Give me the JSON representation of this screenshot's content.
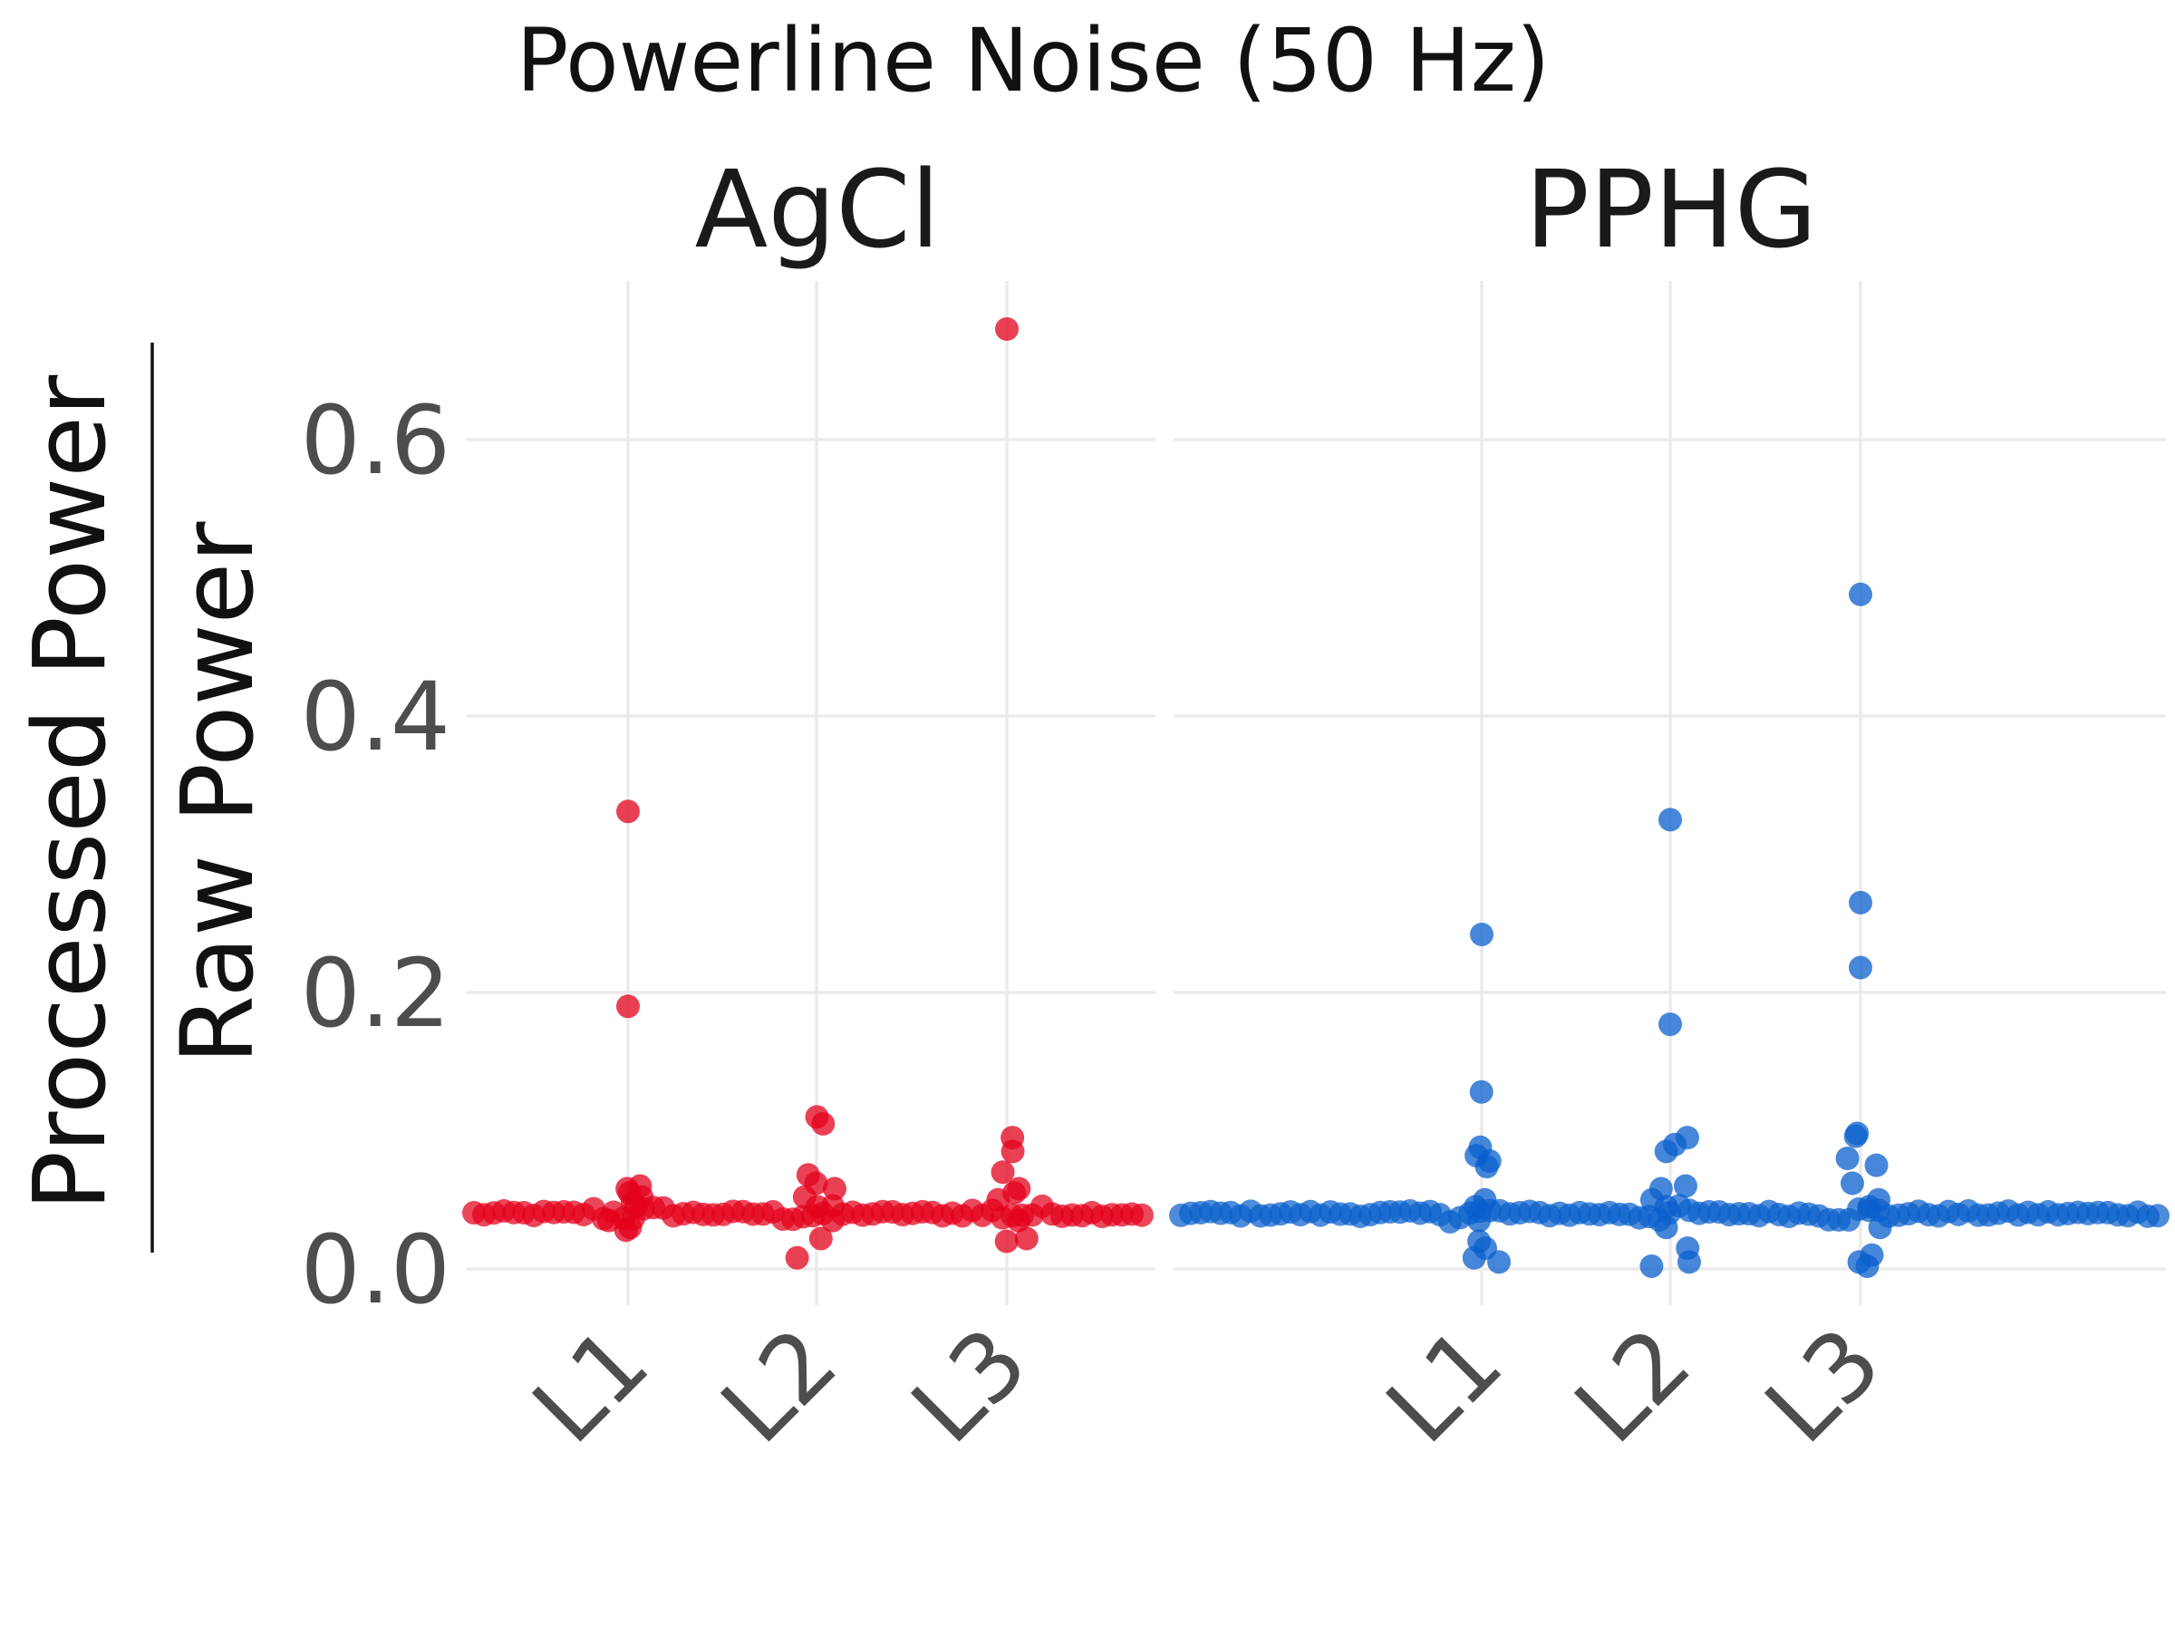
{
  "chart_data": {
    "type": "scatter",
    "title": "Powerline Noise (50 Hz)",
    "ylabel": {
      "numerator": "Processed Power",
      "denominator": "Raw Power"
    },
    "xlabel": "",
    "ylim": [
      -0.03,
      0.7
    ],
    "yticks": [
      0.0,
      0.2,
      0.4,
      0.6
    ],
    "ytick_labels": [
      "0.0",
      "0.2",
      "0.4",
      "0.6"
    ],
    "categories": [
      "L1",
      "L2",
      "L3"
    ],
    "grid": true,
    "baseline_band": {
      "description": "dense strip of points (same color) centered near 0.04 across each panel",
      "center": 0.04
    },
    "panels": [
      {
        "name": "AgCl",
        "color": "#e3001b",
        "series": [
          {
            "category": "L1",
            "values": [
              0.331,
              0.19,
              0.06,
              0.058,
              0.055,
              0.052,
              0.048,
              0.045,
              0.035,
              0.03,
              0.028
            ]
          },
          {
            "category": "L2",
            "values": [
              0.11,
              0.105,
              0.068,
              0.062,
              0.058,
              0.052,
              0.045,
              0.035,
              0.022,
              0.008
            ]
          },
          {
            "category": "L3",
            "values": [
              0.68,
              0.095,
              0.085,
              0.07,
              0.058,
              0.055,
              0.05,
              0.035,
              0.022,
              0.02
            ]
          }
        ]
      },
      {
        "name": "PPHG",
        "color": "#0a5fcc",
        "series": [
          {
            "category": "L1",
            "values": [
              0.242,
              0.128,
              0.088,
              0.082,
              0.078,
              0.074,
              0.05,
              0.045,
              0.035,
              0.02,
              0.015,
              0.008,
              0.005
            ]
          },
          {
            "category": "L2",
            "values": [
              0.325,
              0.177,
              0.095,
              0.09,
              0.085,
              0.06,
              0.058,
              0.05,
              0.045,
              0.03,
              0.015,
              0.005,
              0.002
            ]
          },
          {
            "category": "L3",
            "values": [
              0.488,
              0.265,
              0.218,
              0.098,
              0.096,
              0.08,
              0.075,
              0.062,
              0.05,
              0.045,
              0.03,
              0.01,
              0.005,
              0.002
            ]
          }
        ]
      }
    ]
  }
}
